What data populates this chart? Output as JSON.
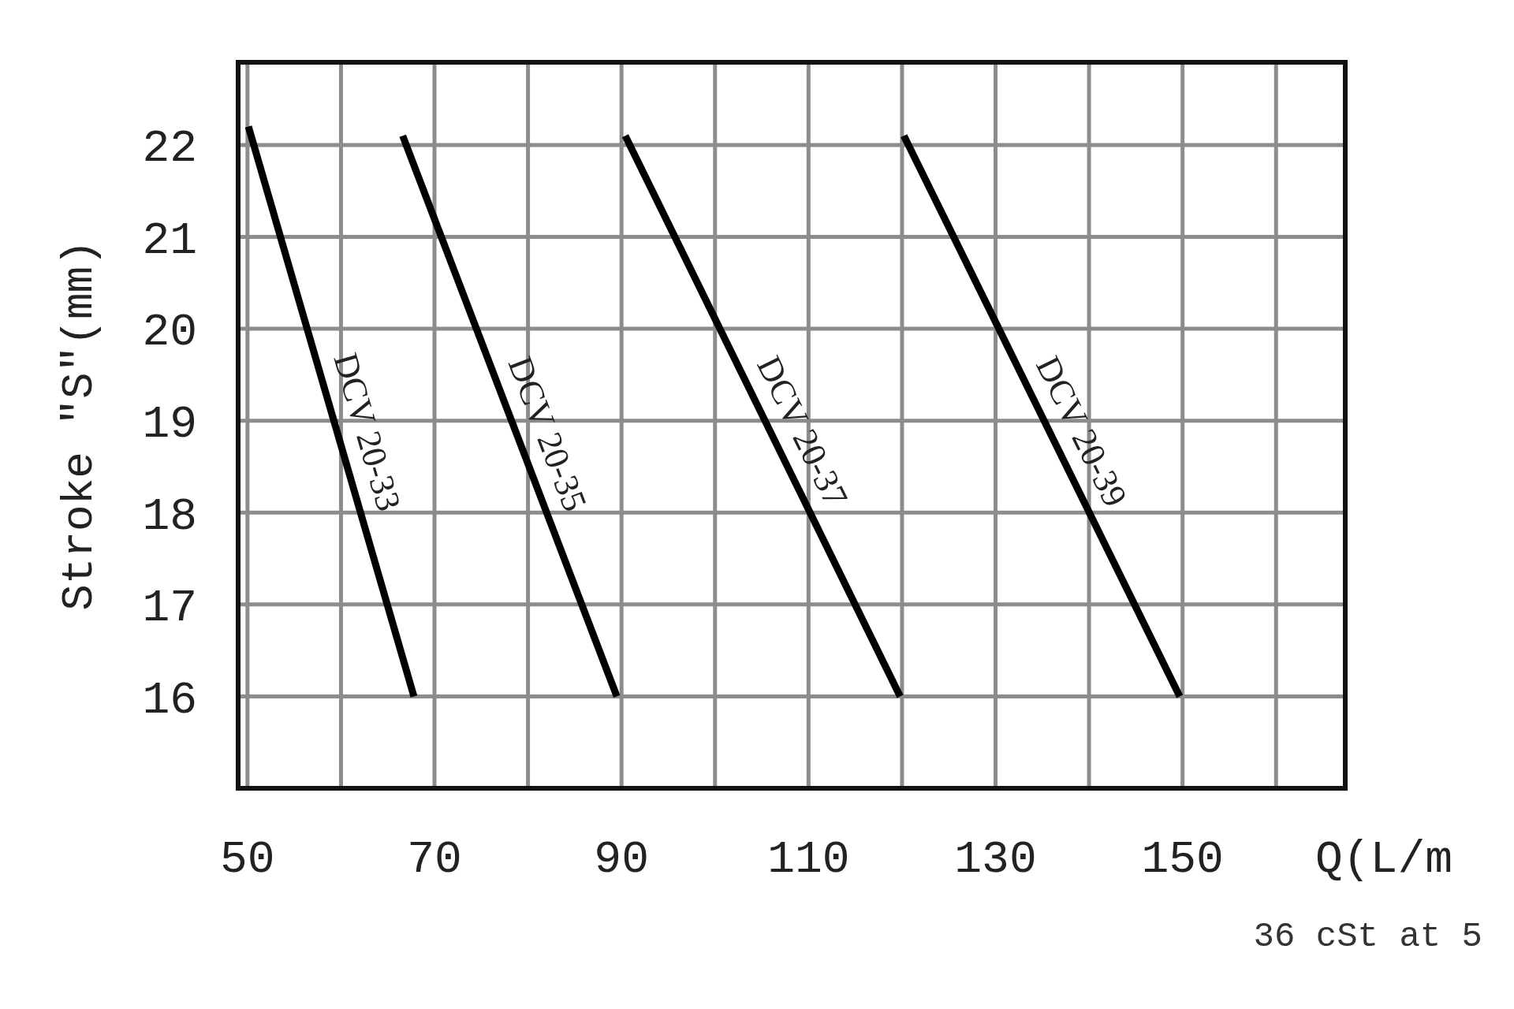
{
  "chart_data": {
    "type": "line",
    "xlabel": "Q(L/m",
    "ylabel": "Stroke \"S\"(mm)",
    "xlim": [
      49,
      167.4
    ],
    "ylim": [
      15,
      22.9
    ],
    "xticks": [
      50,
      {
        "value": 60,
        "label": null
      },
      70,
      {
        "value": 80,
        "label": null
      },
      90,
      {
        "value": 100,
        "label": null
      },
      110,
      {
        "value": 120,
        "label": null
      },
      130,
      {
        "value": 140,
        "label": null
      },
      150,
      {
        "value": 160,
        "label": null
      }
    ],
    "yticks": [
      16,
      17,
      18,
      19,
      20,
      21,
      22
    ],
    "grid": true,
    "marker": "none",
    "line_style": "solid",
    "series": [
      {
        "name": "DCV 20-33",
        "color": "#000000",
        "x": [
          50.1,
          67.8
        ],
        "values": [
          22.2,
          16
        ]
      },
      {
        "name": "DCV 20-35",
        "color": "#000000",
        "x": [
          66.6,
          89.5
        ],
        "values": [
          22.1,
          16
        ]
      },
      {
        "name": "DCV 20-37",
        "color": "#000000",
        "x": [
          90.4,
          119.8
        ],
        "values": [
          22.1,
          16
        ]
      },
      {
        "name": "DCV 20-39",
        "color": "#000000",
        "x": [
          120.2,
          149.7
        ],
        "values": [
          22.1,
          16
        ]
      }
    ],
    "annotations": [
      "36 cSt at 5"
    ]
  }
}
